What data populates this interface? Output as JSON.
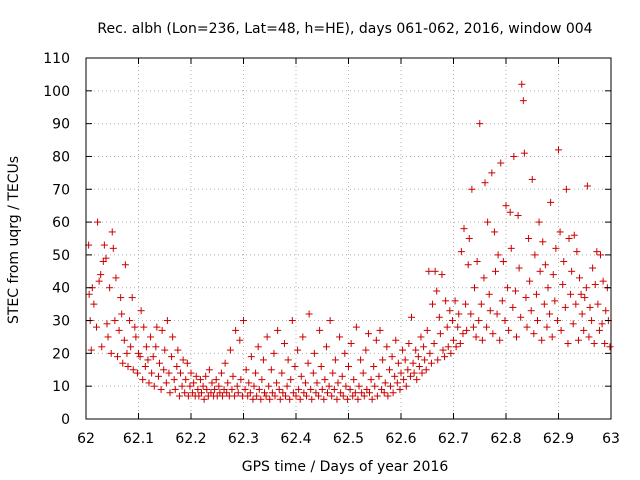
{
  "chart_data": {
    "type": "scatter",
    "title": "Rec. albh (Lon=236, Lat=48, h=HE), days 061-062, 2016, window 004",
    "xlabel": "GPS time / Days of year 2016",
    "ylabel": "STEC from uqrg / TECUs",
    "xlim": [
      62,
      63
    ],
    "ylim": [
      0,
      110
    ],
    "xticks": [
      62,
      62.1,
      62.2,
      62.3,
      62.4,
      62.5,
      62.6,
      62.7,
      62.8,
      62.9,
      63
    ],
    "xtick_labels": [
      "62",
      "62.1",
      "62.2",
      "62.3",
      "62.4",
      "62.5",
      "62.6",
      "62.7",
      "62.8",
      "62.9",
      "63"
    ],
    "yticks": [
      0,
      10,
      20,
      30,
      40,
      50,
      60,
      70,
      80,
      90,
      100,
      110
    ],
    "ytick_labels": [
      "0",
      "10",
      "20",
      "30",
      "40",
      "50",
      "60",
      "70",
      "80",
      "90",
      "100",
      "110"
    ],
    "grid": true,
    "marker": "+",
    "color": "#cc0000",
    "points": [
      [
        62.005,
        53
      ],
      [
        62.006,
        38
      ],
      [
        62.008,
        30
      ],
      [
        62.01,
        21
      ],
      [
        62.012,
        40
      ],
      [
        62.015,
        35
      ],
      [
        62.02,
        28
      ],
      [
        62.022,
        60
      ],
      [
        62.025,
        42
      ],
      [
        62.028,
        44
      ],
      [
        62.03,
        22
      ],
      [
        62.033,
        48
      ],
      [
        62.035,
        53
      ],
      [
        62.038,
        49
      ],
      [
        62.04,
        29
      ],
      [
        62.042,
        25
      ],
      [
        62.045,
        40
      ],
      [
        62.048,
        20
      ],
      [
        62.05,
        57
      ],
      [
        62.052,
        52
      ],
      [
        62.055,
        30
      ],
      [
        62.057,
        43
      ],
      [
        62.06,
        19
      ],
      [
        62.063,
        27
      ],
      [
        62.066,
        37
      ],
      [
        62.068,
        32
      ],
      [
        62.07,
        17
      ],
      [
        62.073,
        24
      ],
      [
        62.075,
        47
      ],
      [
        62.078,
        20
      ],
      [
        62.08,
        16
      ],
      [
        62.083,
        30
      ],
      [
        62.085,
        22
      ],
      [
        62.088,
        37
      ],
      [
        62.09,
        15
      ],
      [
        62.093,
        28
      ],
      [
        62.095,
        25
      ],
      [
        62.098,
        14
      ],
      [
        62.1,
        20
      ],
      [
        62.103,
        19
      ],
      [
        62.105,
        33
      ],
      [
        62.108,
        12
      ],
      [
        62.11,
        28
      ],
      [
        62.113,
        16
      ],
      [
        62.115,
        22
      ],
      [
        62.118,
        18
      ],
      [
        62.12,
        11
      ],
      [
        62.123,
        25
      ],
      [
        62.125,
        14
      ],
      [
        62.128,
        19
      ],
      [
        62.13,
        10
      ],
      [
        62.133,
        22
      ],
      [
        62.135,
        28
      ],
      [
        62.138,
        13
      ],
      [
        62.14,
        17
      ],
      [
        62.143,
        9
      ],
      [
        62.145,
        27
      ],
      [
        62.148,
        15
      ],
      [
        62.15,
        21
      ],
      [
        62.153,
        11
      ],
      [
        62.155,
        30
      ],
      [
        62.158,
        14
      ],
      [
        62.16,
        8
      ],
      [
        62.163,
        19
      ],
      [
        62.165,
        25
      ],
      [
        62.168,
        12
      ],
      [
        62.17,
        9
      ],
      [
        62.173,
        16
      ],
      [
        62.175,
        21
      ],
      [
        62.178,
        7
      ],
      [
        62.18,
        14
      ],
      [
        62.183,
        10
      ],
      [
        62.185,
        18
      ],
      [
        62.188,
        8
      ],
      [
        62.19,
        12
      ],
      [
        62.193,
        17
      ],
      [
        62.195,
        7
      ],
      [
        62.198,
        10
      ],
      [
        62.2,
        14
      ],
      [
        62.203,
        8
      ],
      [
        62.205,
        11
      ],
      [
        62.208,
        7
      ],
      [
        62.21,
        13
      ],
      [
        62.213,
        9
      ],
      [
        62.215,
        7
      ],
      [
        62.218,
        12
      ],
      [
        62.22,
        8
      ],
      [
        62.223,
        10
      ],
      [
        62.225,
        6
      ],
      [
        62.228,
        13
      ],
      [
        62.23,
        9
      ],
      [
        62.233,
        7
      ],
      [
        62.235,
        15
      ],
      [
        62.238,
        8
      ],
      [
        62.24,
        11
      ],
      [
        62.243,
        7
      ],
      [
        62.245,
        9
      ],
      [
        62.248,
        12
      ],
      [
        62.25,
        7
      ],
      [
        62.253,
        10
      ],
      [
        62.255,
        8
      ],
      [
        62.258,
        14
      ],
      [
        62.26,
        7
      ],
      [
        62.263,
        9
      ],
      [
        62.265,
        17
      ],
      [
        62.268,
        8
      ],
      [
        62.27,
        11
      ],
      [
        62.273,
        7
      ],
      [
        62.275,
        21
      ],
      [
        62.278,
        9
      ],
      [
        62.28,
        13
      ],
      [
        62.283,
        7
      ],
      [
        62.285,
        27
      ],
      [
        62.288,
        10
      ],
      [
        62.29,
        8
      ],
      [
        62.293,
        24
      ],
      [
        62.295,
        12
      ],
      [
        62.298,
        7
      ],
      [
        62.3,
        30
      ],
      [
        62.303,
        9
      ],
      [
        62.305,
        15
      ],
      [
        62.308,
        7
      ],
      [
        62.31,
        11
      ],
      [
        62.313,
        8
      ],
      [
        62.315,
        19
      ],
      [
        62.318,
        6
      ],
      [
        62.32,
        10
      ],
      [
        62.323,
        14
      ],
      [
        62.325,
        7
      ],
      [
        62.328,
        22
      ],
      [
        62.33,
        9
      ],
      [
        62.333,
        6
      ],
      [
        62.335,
        12
      ],
      [
        62.338,
        18
      ],
      [
        62.34,
        8
      ],
      [
        62.343,
        7
      ],
      [
        62.345,
        25
      ],
      [
        62.348,
        10
      ],
      [
        62.35,
        6
      ],
      [
        62.353,
        15
      ],
      [
        62.355,
        8
      ],
      [
        62.358,
        20
      ],
      [
        62.36,
        7
      ],
      [
        62.363,
        11
      ],
      [
        62.365,
        27
      ],
      [
        62.368,
        9
      ],
      [
        62.37,
        6
      ],
      [
        62.373,
        14
      ],
      [
        62.375,
        8
      ],
      [
        62.378,
        23
      ],
      [
        62.38,
        7
      ],
      [
        62.383,
        10
      ],
      [
        62.385,
        18
      ],
      [
        62.388,
        6
      ],
      [
        62.39,
        12
      ],
      [
        62.393,
        30
      ],
      [
        62.395,
        8
      ],
      [
        62.398,
        16
      ],
      [
        62.4,
        7
      ],
      [
        62.403,
        21
      ],
      [
        62.405,
        9
      ],
      [
        62.408,
        6
      ],
      [
        62.41,
        13
      ],
      [
        62.413,
        25
      ],
      [
        62.415,
        8
      ],
      [
        62.418,
        11
      ],
      [
        62.42,
        7
      ],
      [
        62.423,
        17
      ],
      [
        62.425,
        32
      ],
      [
        62.428,
        9
      ],
      [
        62.43,
        6
      ],
      [
        62.433,
        14
      ],
      [
        62.435,
        20
      ],
      [
        62.438,
        8
      ],
      [
        62.44,
        11
      ],
      [
        62.443,
        7
      ],
      [
        62.445,
        27
      ],
      [
        62.448,
        16
      ],
      [
        62.45,
        9
      ],
      [
        62.453,
        6
      ],
      [
        62.455,
        12
      ],
      [
        62.458,
        22
      ],
      [
        62.46,
        8
      ],
      [
        62.463,
        10
      ],
      [
        62.465,
        30
      ],
      [
        62.468,
        7
      ],
      [
        62.47,
        14
      ],
      [
        62.473,
        9
      ],
      [
        62.475,
        18
      ],
      [
        62.478,
        6
      ],
      [
        62.48,
        11
      ],
      [
        62.483,
        25
      ],
      [
        62.485,
        8
      ],
      [
        62.488,
        13
      ],
      [
        62.49,
        7
      ],
      [
        62.493,
        20
      ],
      [
        62.495,
        10
      ],
      [
        62.498,
        6
      ],
      [
        62.5,
        16
      ],
      [
        62.503,
        9
      ],
      [
        62.505,
        23
      ],
      [
        62.508,
        7
      ],
      [
        62.51,
        12
      ],
      [
        62.513,
        8
      ],
      [
        62.515,
        28
      ],
      [
        62.518,
        6
      ],
      [
        62.52,
        10
      ],
      [
        62.523,
        18
      ],
      [
        62.525,
        8
      ],
      [
        62.528,
        14
      ],
      [
        62.53,
        7
      ],
      [
        62.533,
        21
      ],
      [
        62.535,
        9
      ],
      [
        62.538,
        26
      ],
      [
        62.54,
        8
      ],
      [
        62.543,
        12
      ],
      [
        62.545,
        6
      ],
      [
        62.548,
        16
      ],
      [
        62.55,
        10
      ],
      [
        62.553,
        24
      ],
      [
        62.555,
        7
      ],
      [
        62.558,
        13
      ],
      [
        62.56,
        27
      ],
      [
        62.563,
        9
      ],
      [
        62.565,
        18
      ],
      [
        62.568,
        8
      ],
      [
        62.57,
        11
      ],
      [
        62.573,
        22
      ],
      [
        62.575,
        7
      ],
      [
        62.578,
        15
      ],
      [
        62.58,
        10
      ],
      [
        62.583,
        19
      ],
      [
        62.585,
        8
      ],
      [
        62.588,
        13
      ],
      [
        62.59,
        24
      ],
      [
        62.593,
        11
      ],
      [
        62.595,
        17
      ],
      [
        62.598,
        9
      ],
      [
        62.6,
        14
      ],
      [
        62.603,
        21
      ],
      [
        62.605,
        12
      ],
      [
        62.608,
        18
      ],
      [
        62.61,
        10
      ],
      [
        62.613,
        15
      ],
      [
        62.615,
        23
      ],
      [
        62.618,
        13
      ],
      [
        62.62,
        31
      ],
      [
        62.623,
        17
      ],
      [
        62.625,
        14
      ],
      [
        62.628,
        21
      ],
      [
        62.63,
        12
      ],
      [
        62.633,
        19
      ],
      [
        62.635,
        16
      ],
      [
        62.638,
        25
      ],
      [
        62.64,
        14
      ],
      [
        62.643,
        22
      ],
      [
        62.645,
        18
      ],
      [
        62.648,
        15
      ],
      [
        62.65,
        27
      ],
      [
        62.653,
        45
      ],
      [
        62.655,
        20
      ],
      [
        62.658,
        17
      ],
      [
        62.66,
        35
      ],
      [
        62.663,
        23
      ],
      [
        62.665,
        45
      ],
      [
        62.668,
        39
      ],
      [
        62.67,
        18
      ],
      [
        62.673,
        31
      ],
      [
        62.675,
        26
      ],
      [
        62.678,
        44
      ],
      [
        62.68,
        21
      ],
      [
        62.683,
        19
      ],
      [
        62.685,
        36
      ],
      [
        62.688,
        28
      ],
      [
        62.69,
        22
      ],
      [
        62.693,
        33
      ],
      [
        62.695,
        20
      ],
      [
        62.698,
        30
      ],
      [
        62.7,
        24
      ],
      [
        62.703,
        36
      ],
      [
        62.705,
        22
      ],
      [
        62.708,
        28
      ],
      [
        62.71,
        32
      ],
      [
        62.713,
        23
      ],
      [
        62.715,
        51
      ],
      [
        62.718,
        26
      ],
      [
        62.72,
        58
      ],
      [
        62.723,
        35
      ],
      [
        62.725,
        27
      ],
      [
        62.728,
        47
      ],
      [
        62.73,
        55
      ],
      [
        62.733,
        32
      ],
      [
        62.735,
        70
      ],
      [
        62.738,
        28
      ],
      [
        62.74,
        40
      ],
      [
        62.743,
        25
      ],
      [
        62.745,
        48
      ],
      [
        62.748,
        30
      ],
      [
        62.75,
        90
      ],
      [
        62.753,
        35
      ],
      [
        62.755,
        24
      ],
      [
        62.758,
        43
      ],
      [
        62.76,
        72
      ],
      [
        62.763,
        28
      ],
      [
        62.765,
        60
      ],
      [
        62.768,
        38
      ],
      [
        62.77,
        33
      ],
      [
        62.773,
        75
      ],
      [
        62.775,
        26
      ],
      [
        62.778,
        57
      ],
      [
        62.78,
        45
      ],
      [
        62.783,
        32
      ],
      [
        62.785,
        50
      ],
      [
        62.788,
        24
      ],
      [
        62.79,
        78
      ],
      [
        62.793,
        36
      ],
      [
        62.795,
        48
      ],
      [
        62.798,
        30
      ],
      [
        62.8,
        65
      ],
      [
        62.803,
        40
      ],
      [
        62.805,
        27
      ],
      [
        62.808,
        63
      ],
      [
        62.81,
        52
      ],
      [
        62.813,
        34
      ],
      [
        62.815,
        80
      ],
      [
        62.818,
        39
      ],
      [
        62.82,
        25
      ],
      [
        62.823,
        62
      ],
      [
        62.825,
        46
      ],
      [
        62.828,
        31
      ],
      [
        62.83,
        102
      ],
      [
        62.833,
        97
      ],
      [
        62.835,
        81
      ],
      [
        62.838,
        37
      ],
      [
        62.84,
        28
      ],
      [
        62.843,
        55
      ],
      [
        62.845,
        42
      ],
      [
        62.848,
        33
      ],
      [
        62.85,
        73
      ],
      [
        62.853,
        26
      ],
      [
        62.855,
        50
      ],
      [
        62.858,
        38
      ],
      [
        62.86,
        30
      ],
      [
        62.863,
        60
      ],
      [
        62.865,
        45
      ],
      [
        62.868,
        24
      ],
      [
        62.87,
        54
      ],
      [
        62.873,
        35
      ],
      [
        62.875,
        47
      ],
      [
        62.878,
        28
      ],
      [
        62.88,
        40
      ],
      [
        62.883,
        32
      ],
      [
        62.885,
        66
      ],
      [
        62.888,
        25
      ],
      [
        62.89,
        44
      ],
      [
        62.893,
        36
      ],
      [
        62.895,
        52
      ],
      [
        62.898,
        30
      ],
      [
        62.9,
        82
      ],
      [
        62.903,
        57
      ],
      [
        62.905,
        27
      ],
      [
        62.908,
        41
      ],
      [
        62.91,
        48
      ],
      [
        62.913,
        34
      ],
      [
        62.915,
        70
      ],
      [
        62.918,
        23
      ],
      [
        62.92,
        55
      ],
      [
        62.923,
        38
      ],
      [
        62.925,
        45
      ],
      [
        62.928,
        29
      ],
      [
        62.93,
        56
      ],
      [
        62.933,
        35
      ],
      [
        62.935,
        51
      ],
      [
        62.938,
        24
      ],
      [
        62.94,
        43
      ],
      [
        62.943,
        38
      ],
      [
        62.945,
        32
      ],
      [
        62.948,
        27
      ],
      [
        62.95,
        37
      ],
      [
        62.953,
        40
      ],
      [
        62.955,
        71
      ],
      [
        62.958,
        25
      ],
      [
        62.96,
        34
      ],
      [
        62.963,
        30
      ],
      [
        62.965,
        46
      ],
      [
        62.968,
        23
      ],
      [
        62.97,
        41
      ],
      [
        62.973,
        51
      ],
      [
        62.975,
        35
      ],
      [
        62.978,
        27
      ],
      [
        62.98,
        50
      ],
      [
        62.983,
        29
      ],
      [
        62.985,
        42
      ],
      [
        62.988,
        23
      ],
      [
        62.99,
        33
      ],
      [
        62.993,
        40
      ],
      [
        62.995,
        30
      ],
      [
        62.998,
        22
      ]
    ]
  }
}
